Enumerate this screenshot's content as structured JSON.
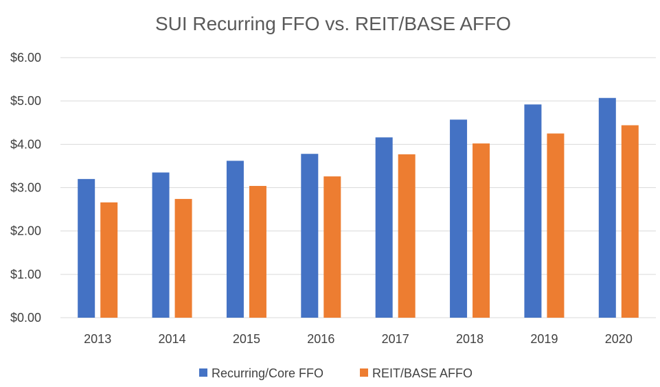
{
  "chart_data": {
    "type": "bar",
    "title": "SUI Recurring FFO vs. REIT/BASE AFFO",
    "xlabel": "",
    "ylabel": "",
    "categories": [
      "2013",
      "2014",
      "2015",
      "2016",
      "2017",
      "2018",
      "2019",
      "2020"
    ],
    "series": [
      {
        "name": "Recurring/Core FFO",
        "color": "#4472C4",
        "values": [
          3.2,
          3.35,
          3.62,
          3.78,
          4.16,
          4.57,
          4.92,
          5.07
        ]
      },
      {
        "name": "REIT/BASE AFFO",
        "color": "#ED7D31",
        "values": [
          2.66,
          2.74,
          3.04,
          3.26,
          3.77,
          4.02,
          4.25,
          4.44
        ]
      }
    ],
    "ylim": [
      0,
      6
    ],
    "yticks": [
      0,
      1,
      2,
      3,
      4,
      5,
      6
    ],
    "ytick_labels": [
      "$0.00",
      "$1.00",
      "$2.00",
      "$3.00",
      "$4.00",
      "$5.00",
      "$6.00"
    ],
    "grid": true,
    "legend_position": "bottom"
  }
}
